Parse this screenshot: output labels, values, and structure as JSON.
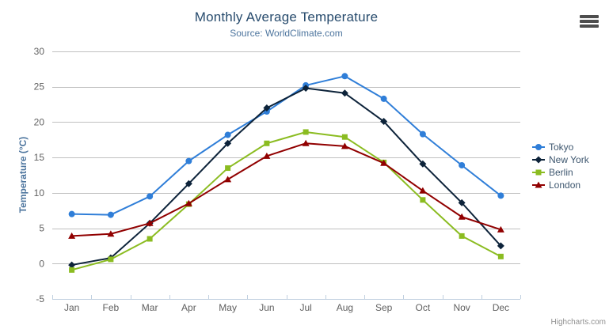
{
  "header": {
    "title": "Monthly Average Temperature",
    "subtitle": "Source: WorldClimate.com"
  },
  "icons": {
    "context_menu": "hamburger-icon"
  },
  "credit": {
    "label": "Highcharts.com"
  },
  "chart_data": {
    "type": "line",
    "title": "Monthly Average Temperature",
    "subtitle": "Source: WorldClimate.com",
    "xlabel": "",
    "ylabel": "Temperature (°C)",
    "ylim": [
      -5,
      30
    ],
    "ytick_step": 5,
    "grid": true,
    "legend_position": "right-middle",
    "categories": [
      "Jan",
      "Feb",
      "Mar",
      "Apr",
      "May",
      "Jun",
      "Jul",
      "Aug",
      "Sep",
      "Oct",
      "Nov",
      "Dec"
    ],
    "series": [
      {
        "name": "Tokyo",
        "color": "#2f7ed8",
        "marker": "circle",
        "values": [
          7.0,
          6.9,
          9.5,
          14.5,
          18.2,
          21.5,
          25.2,
          26.5,
          23.3,
          18.3,
          13.9,
          9.6
        ]
      },
      {
        "name": "New York",
        "color": "#0d233a",
        "marker": "diamond",
        "values": [
          -0.2,
          0.8,
          5.7,
          11.3,
          17.0,
          22.0,
          24.8,
          24.1,
          20.1,
          14.1,
          8.6,
          2.5
        ]
      },
      {
        "name": "Berlin",
        "color": "#8bbc21",
        "marker": "square",
        "values": [
          -0.9,
          0.6,
          3.5,
          8.4,
          13.5,
          17.0,
          18.6,
          17.9,
          14.3,
          9.0,
          3.9,
          1.0
        ]
      },
      {
        "name": "London",
        "color": "#910000",
        "marker": "triangle",
        "values": [
          3.9,
          4.2,
          5.7,
          8.5,
          11.9,
          15.2,
          17.0,
          16.6,
          14.2,
          10.3,
          6.6,
          4.8
        ]
      }
    ],
    "colors": {
      "grid_line": "#C0C0C0",
      "axis_line": "#C0D0E0",
      "axis_label": "#606060",
      "title": "#274b6d",
      "subtitle": "#4d759e",
      "legend_text": "#3E576F"
    }
  }
}
